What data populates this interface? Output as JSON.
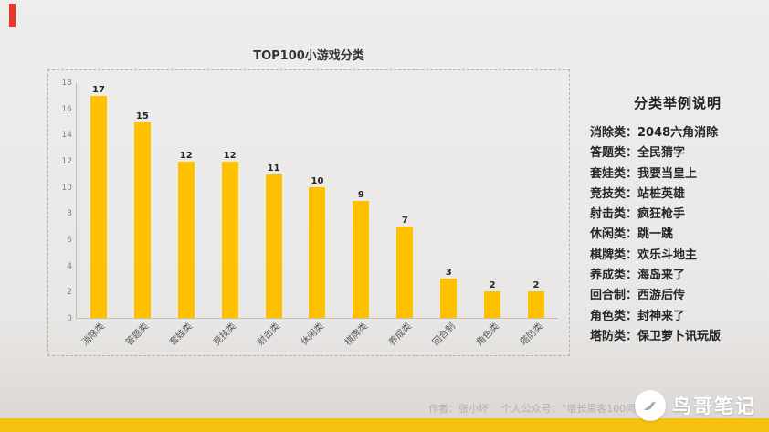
{
  "accent": {
    "red_mark_color": "#e6382a",
    "bar_color": "#ffc000",
    "footer_bar_color": "#f6c211"
  },
  "chart_data": {
    "type": "bar",
    "title": "TOP100小游戏分类",
    "categories": [
      "消除类",
      "答题类",
      "套娃类",
      "竞技类",
      "射击类",
      "休闲类",
      "棋牌类",
      "养成类",
      "回合制",
      "角色类",
      "塔防类"
    ],
    "values": [
      17,
      15,
      12,
      12,
      11,
      10,
      9,
      7,
      3,
      2,
      2
    ],
    "xlabel": "",
    "ylabel": "",
    "ylim": [
      0,
      18
    ],
    "yticks": [
      0,
      2,
      4,
      6,
      8,
      10,
      12,
      14,
      16,
      18
    ],
    "grid": false,
    "legend_position": "none",
    "bar_color": "#ffc000"
  },
  "legend_panel": {
    "title": "分类举例说明",
    "items": [
      "消除类：2048六角消除",
      "答题类：全民猜字",
      "套娃类：我要当皇上",
      "竞技类：站桩英雄",
      "射击类：疯狂枪手",
      "休闲类：跳一跳",
      "棋牌类：欢乐斗地主",
      "养成类：海岛来了",
      "回合制：西游后传",
      "角色类：封神来了",
      "塔防类：保卫萝卜讯玩版"
    ]
  },
  "footer": {
    "author": "作者：张小坏",
    "account": "个人公众号：“增长黑客100问”",
    "brand": "鸟哥笔记"
  }
}
